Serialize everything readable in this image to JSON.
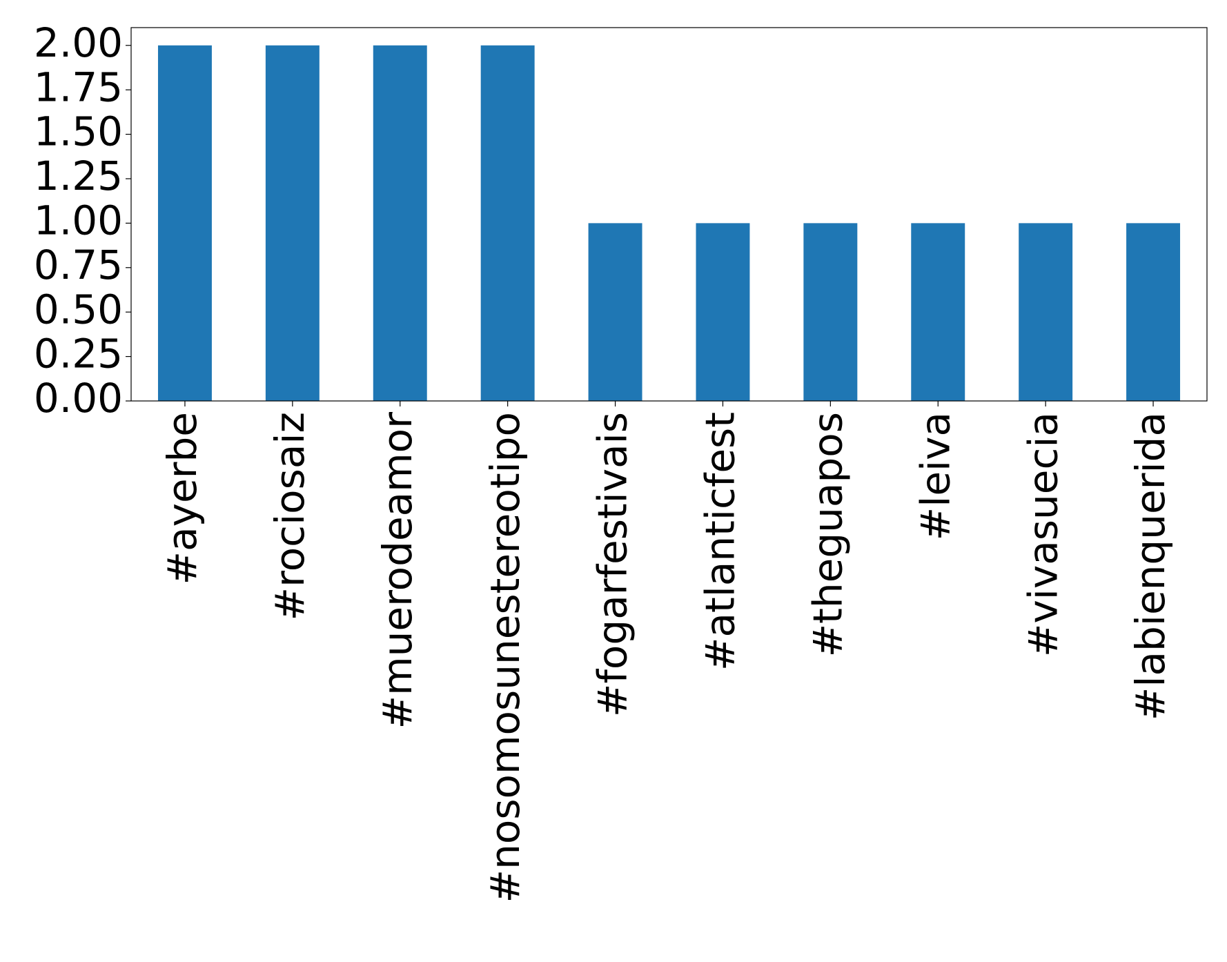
{
  "chart_data": {
    "type": "bar",
    "categories": [
      "#ayerbe",
      "#rociosaiz",
      "#muerodeamor",
      "#nosomosunestereotipo",
      "#fogarfestivais",
      "#atlanticfest",
      "#theguapos",
      "#leiva",
      "#vivasuecia",
      "#labienquerida"
    ],
    "values": [
      2,
      2,
      2,
      2,
      1,
      1,
      1,
      1,
      1,
      1
    ],
    "color": "#1f77b4",
    "ylim": [
      0,
      2.1
    ],
    "yticks": [
      {
        "value": 0,
        "label": "0.00"
      },
      {
        "value": 0.25,
        "label": "0.25"
      },
      {
        "value": 0.5,
        "label": "0.50"
      },
      {
        "value": 0.75,
        "label": "0.75"
      },
      {
        "value": 1,
        "label": "1.00"
      },
      {
        "value": 1.25,
        "label": "1.25"
      },
      {
        "value": 1.5,
        "label": "1.50"
      },
      {
        "value": 1.75,
        "label": "1.75"
      },
      {
        "value": 2,
        "label": "2.00"
      }
    ],
    "grid": false
  }
}
